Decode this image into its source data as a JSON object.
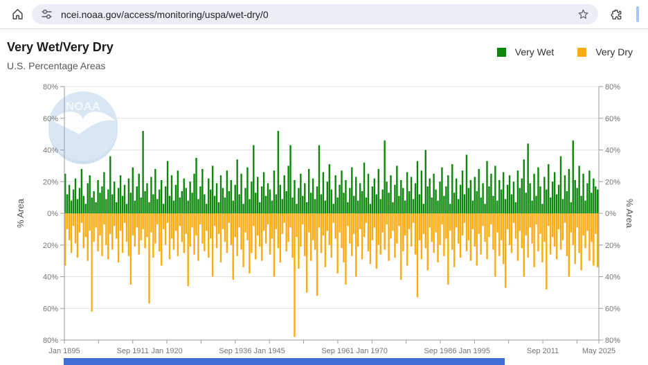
{
  "browser": {
    "url": "ncei.noaa.gov/access/monitoring/uspa/wet-dry/0",
    "icons": {
      "home": "house-outline",
      "site_settings": "tune-sliders",
      "bookmark": "star-outline",
      "extensions": "puzzle-piece"
    }
  },
  "page": {
    "title": "Very Wet/Very Dry",
    "subtitle": "U.S. Percentage Areas",
    "watermark": "NOAA"
  },
  "colors": {
    "very_wet": "#0c870c",
    "very_dry": "#fcab10",
    "gridline": "#e2e2e2",
    "axis": "#9b9b9b",
    "tick_label": "#767676",
    "axis_title": "#555555",
    "watermark_blue": "#d9e7f4",
    "watermark_blue_dark": "#cfe0ef",
    "footer_bar": "#3f6fd4"
  },
  "chart_data": {
    "type": "bar",
    "title": "Very Wet/Very Dry",
    "subtitle": "U.S. Percentage Areas",
    "ylabel_left": "% Area",
    "ylabel_right": "% Area",
    "y_tick_labels": [
      "80%",
      "60%",
      "40%",
      "20%",
      "0%",
      "20%",
      "40%",
      "60%",
      "80%"
    ],
    "ylim_up": 80,
    "ylim_down": 80,
    "grid": true,
    "legend_position": "top-right",
    "x_total_months": 1564,
    "x_tick_months": [
      0,
      100,
      200,
      300,
      400,
      500,
      600,
      700,
      800,
      900,
      1000,
      1100,
      1200,
      1300,
      1400,
      1500,
      1564
    ],
    "x_tick_labels": [
      {
        "m": 0,
        "t": "Jan 1895"
      },
      {
        "m": 200,
        "t": "Sep 1911"
      },
      {
        "m": 300,
        "t": "Jan 1920"
      },
      {
        "m": 500,
        "t": "Sep 1936"
      },
      {
        "m": 600,
        "t": "Jan 1945"
      },
      {
        "m": 800,
        "t": "Sep 1961"
      },
      {
        "m": 900,
        "t": "Jan 1970"
      },
      {
        "m": 1100,
        "t": "Sep 1986"
      },
      {
        "m": 1200,
        "t": "Jan 1995"
      },
      {
        "m": 1400,
        "t": "Sep 2011"
      },
      {
        "m": 1564,
        "t": "May 2025"
      }
    ],
    "sampling_note": "percent of U.S. area, semiannual samples Jan 1895 - May 2025, values estimated from pixels",
    "series": [
      {
        "name": "Very Wet",
        "color": "#0c870c",
        "direction": "up",
        "values": [
          25,
          12,
          18,
          8,
          15,
          22,
          9,
          16,
          28,
          11,
          6,
          19,
          24,
          10,
          14,
          7,
          21,
          13,
          17,
          26,
          9,
          15,
          36,
          12,
          20,
          7,
          16,
          24,
          11,
          18,
          6,
          22,
          13,
          29,
          8,
          17,
          25,
          10,
          52,
          14,
          19,
          7,
          23,
          12,
          28,
          9,
          15,
          21,
          6,
          17,
          33,
          11,
          24,
          8,
          18,
          27,
          10,
          14,
          22,
          16,
          8,
          20,
          13,
          25,
          35,
          9,
          17,
          28,
          12,
          6,
          22,
          15,
          30,
          11,
          19,
          7,
          24,
          16,
          10,
          27,
          14,
          21,
          8,
          18,
          34,
          12,
          25,
          6,
          16,
          29,
          9,
          20,
          43,
          13,
          23,
          7,
          17,
          26,
          11,
          19,
          15,
          8,
          27,
          12,
          52,
          18,
          9,
          24,
          14,
          30,
          43,
          10,
          21,
          6,
          16,
          25,
          11,
          19,
          7,
          28,
          13,
          22,
          9,
          17,
          43,
          12,
          26,
          8,
          20,
          31,
          15,
          6,
          24,
          10,
          18,
          27,
          13,
          21,
          7,
          16,
          29,
          11,
          23,
          8,
          19,
          14,
          32,
          10,
          25,
          6,
          17,
          22,
          12,
          28,
          9,
          15,
          46,
          20,
          13,
          24,
          7,
          18,
          30,
          11,
          21,
          16,
          8,
          26,
          14,
          23,
          9,
          19,
          33,
          12,
          27,
          6,
          40,
          17,
          22,
          10,
          25,
          15,
          8,
          20,
          29,
          11,
          17,
          24,
          6,
          31,
          13,
          22,
          9,
          18,
          27,
          12,
          37,
          16,
          21,
          8,
          23,
          14,
          28,
          10,
          19,
          6,
          33,
          17,
          25,
          11,
          30,
          8,
          21,
          15,
          26,
          9,
          18,
          24,
          12,
          20,
          7,
          27,
          16,
          22,
          34,
          13,
          44,
          19,
          8,
          25,
          11,
          29,
          17,
          6,
          23,
          15,
          31,
          10,
          20,
          26,
          12,
          18,
          36,
          9,
          24,
          14,
          28,
          7,
          46,
          21,
          16,
          30,
          11,
          25,
          8,
          19,
          27,
          13,
          22,
          17,
          15
        ]
      },
      {
        "name": "Very Dry",
        "color": "#fcab10",
        "direction": "down",
        "values": [
          33,
          10,
          17,
          25,
          8,
          19,
          28,
          12,
          6,
          22,
          15,
          30,
          11,
          62,
          18,
          9,
          24,
          14,
          27,
          7,
          20,
          29,
          13,
          23,
          8,
          16,
          31,
          11,
          25,
          6,
          18,
          27,
          45,
          14,
          21,
          9,
          26,
          17,
          10,
          22,
          15,
          57,
          12,
          28,
          19,
          7,
          24,
          33,
          10,
          20,
          6,
          29,
          16,
          23,
          11,
          27,
          8,
          18,
          25,
          13,
          46,
          21,
          9,
          26,
          14,
          30,
          7,
          19,
          24,
          11,
          28,
          16,
          40,
          8,
          22,
          13,
          31,
          10,
          18,
          25,
          6,
          20,
          42,
          15,
          27,
          9,
          23,
          34,
          12,
          17,
          38,
          25,
          8,
          29,
          14,
          21,
          30,
          11,
          19,
          7,
          26,
          16,
          40,
          10,
          22,
          31,
          13,
          6,
          24,
          18,
          9,
          28,
          78,
          15,
          35,
          21,
          7,
          27,
          50,
          12,
          30,
          17,
          23,
          52,
          9,
          25,
          14,
          34,
          11,
          20,
          28,
          6,
          16,
          38,
          12,
          22,
          31,
          45,
          8,
          19,
          27,
          13,
          40,
          21,
          10,
          29,
          15,
          6,
          24,
          32,
          17,
          9,
          35,
          20,
          26,
          12,
          23,
          7,
          30,
          16,
          11,
          28,
          19,
          8,
          42,
          24,
          14,
          33,
          10,
          21,
          6,
          26,
          53,
          17,
          29,
          13,
          22,
          36,
          9,
          18,
          25,
          12,
          31,
          20,
          7,
          27,
          16,
          45,
          11,
          23,
          34,
          9,
          19,
          28,
          14,
          6,
          24,
          17,
          30,
          10,
          21,
          33,
          13,
          26,
          8,
          18,
          29,
          15,
          7,
          23,
          40,
          12,
          27,
          17,
          32,
          47,
          10,
          20,
          25,
          6,
          16,
          30,
          11,
          22,
          40,
          14,
          28,
          9,
          19,
          34,
          7,
          24,
          13,
          31,
          18,
          48,
          8,
          26,
          15,
          21,
          29,
          10,
          23,
          17,
          6,
          27,
          40,
          12,
          20,
          32,
          9,
          25,
          36,
          14,
          22,
          11,
          30,
          18,
          33,
          13,
          34
        ]
      }
    ]
  }
}
